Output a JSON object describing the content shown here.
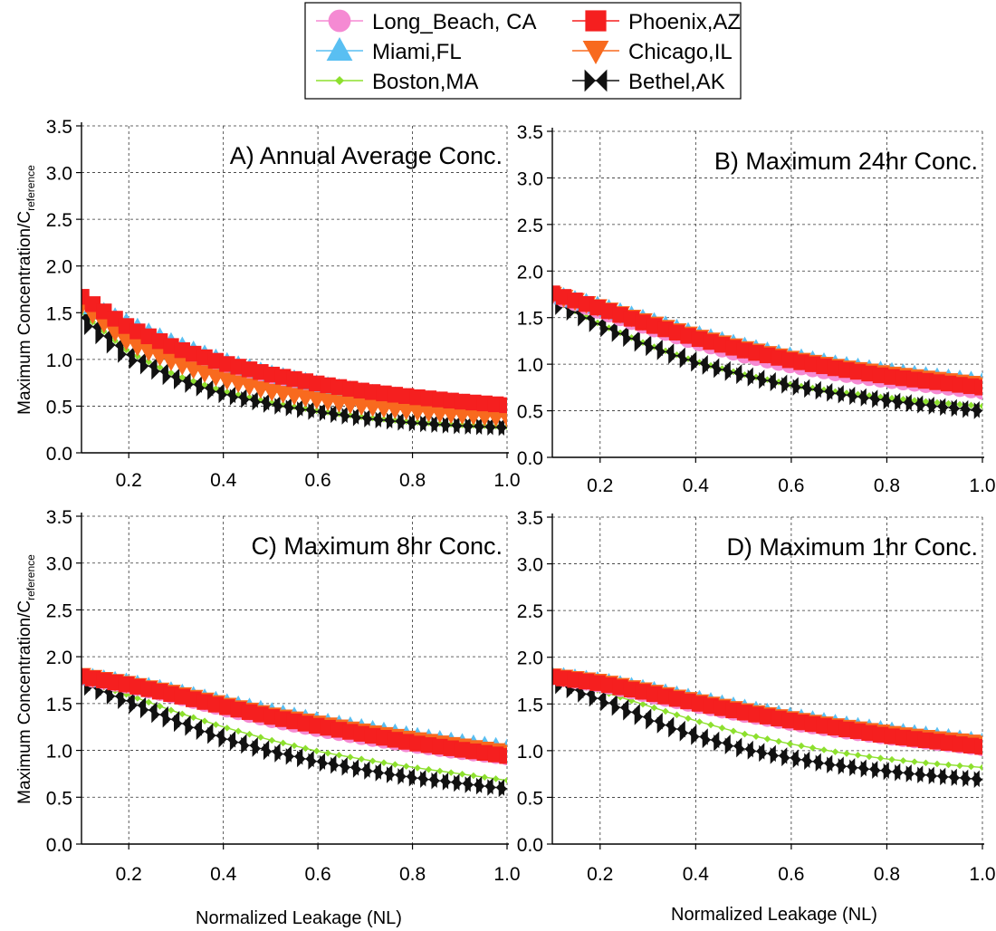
{
  "legend": {
    "placement": "top-center",
    "entries": [
      {
        "name": "Long_Beach, CA",
        "color": "#f58ad3",
        "marker": "circle"
      },
      {
        "name": "Miami,FL",
        "color": "#59bff2",
        "marker": "triangle-up"
      },
      {
        "name": "Boston,MA",
        "color": "#8de02e",
        "marker": "diamond-small"
      },
      {
        "name": "Phoenix,AZ",
        "color": "#f51f1f",
        "marker": "square"
      },
      {
        "name": "Chicago,IL",
        "color": "#f86a1e",
        "marker": "triangle-down"
      },
      {
        "name": "Bethel,AK",
        "color": "#111111",
        "marker": "bowtie"
      }
    ]
  },
  "axes": {
    "ylabel_main": "Maximum Concentration/C",
    "ylabel_sub": "reference",
    "xlabel": "Normalized Leakage (NL)",
    "xlim": [
      0.1,
      1.0
    ],
    "ylim": [
      0.0,
      3.5
    ],
    "xticks": [
      "0.2",
      "0.4",
      "0.6",
      "0.8",
      "1.0"
    ],
    "yticks": [
      "0.0",
      "0.5",
      "1.0",
      "1.5",
      "2.0",
      "2.5",
      "3.0",
      "3.5"
    ],
    "grid": "dashed"
  },
  "chart_data": [
    {
      "type": "line",
      "title": "A) Annual Average Conc.",
      "x_range": [
        0.1,
        1.0
      ],
      "points_per_series": 39,
      "series": [
        {
          "name": "Long_Beach, CA",
          "values_at": {
            "0.1": 1.65,
            "0.2": 1.32,
            "0.3": 1.09,
            "0.4": 0.92,
            "0.5": 0.79,
            "0.6": 0.69,
            "0.7": 0.61,
            "0.8": 0.56,
            "0.9": 0.52,
            "1.0": 0.49
          }
        },
        {
          "name": "Miami,FL",
          "values_at": {
            "0.1": 1.62,
            "0.2": 1.38,
            "0.3": 1.16,
            "0.4": 0.98,
            "0.5": 0.84,
            "0.6": 0.73,
            "0.7": 0.64,
            "0.8": 0.58,
            "0.9": 0.53,
            "1.0": 0.48
          }
        },
        {
          "name": "Boston,MA",
          "values_at": {
            "0.1": 1.5,
            "0.2": 1.08,
            "0.3": 0.83,
            "0.4": 0.66,
            "0.5": 0.54,
            "0.6": 0.45,
            "0.7": 0.38,
            "0.8": 0.33,
            "0.9": 0.3,
            "1.0": 0.28
          }
        },
        {
          "name": "Phoenix,AZ",
          "values_at": {
            "0.1": 1.67,
            "0.2": 1.34,
            "0.3": 1.12,
            "0.4": 0.96,
            "0.5": 0.84,
            "0.6": 0.74,
            "0.7": 0.66,
            "0.8": 0.6,
            "0.9": 0.55,
            "1.0": 0.51
          }
        },
        {
          "name": "Chicago,IL",
          "values_at": {
            "0.1": 1.58,
            "0.2": 1.18,
            "0.3": 0.96,
            "0.4": 0.79,
            "0.5": 0.66,
            "0.6": 0.57,
            "0.7": 0.5,
            "0.8": 0.45,
            "0.9": 0.41,
            "1.0": 0.38
          }
        },
        {
          "name": "Bethel,AK",
          "values_at": {
            "0.1": 1.45,
            "0.2": 1.03,
            "0.3": 0.79,
            "0.4": 0.63,
            "0.5": 0.52,
            "0.6": 0.44,
            "0.7": 0.37,
            "0.8": 0.32,
            "0.9": 0.29,
            "1.0": 0.27
          }
        }
      ]
    },
    {
      "type": "line",
      "title": "B) Maximum 24hr Conc.",
      "x_range": [
        0.1,
        1.0
      ],
      "points_per_series": 39,
      "series": [
        {
          "name": "Long_Beach, CA",
          "values_at": {
            "0.1": 1.74,
            "0.2": 1.57,
            "0.3": 1.4,
            "0.4": 1.24,
            "0.5": 1.1,
            "0.6": 0.99,
            "0.7": 0.9,
            "0.8": 0.83,
            "0.9": 0.77,
            "1.0": 0.71
          }
        },
        {
          "name": "Miami,FL",
          "values_at": {
            "0.1": 1.75,
            "0.2": 1.62,
            "0.3": 1.47,
            "0.4": 1.32,
            "0.5": 1.19,
            "0.6": 1.08,
            "0.7": 0.99,
            "0.8": 0.92,
            "0.9": 0.86,
            "1.0": 0.81
          }
        },
        {
          "name": "Boston,MA",
          "values_at": {
            "0.1": 1.7,
            "0.2": 1.43,
            "0.3": 1.21,
            "0.4": 1.03,
            "0.5": 0.89,
            "0.6": 0.78,
            "0.7": 0.7,
            "0.8": 0.64,
            "0.9": 0.59,
            "1.0": 0.55
          }
        },
        {
          "name": "Phoenix,AZ",
          "values_at": {
            "0.1": 1.76,
            "0.2": 1.6,
            "0.3": 1.43,
            "0.4": 1.28,
            "0.5": 1.15,
            "0.6": 1.04,
            "0.7": 0.95,
            "0.8": 0.87,
            "0.9": 0.81,
            "1.0": 0.75
          }
        },
        {
          "name": "Chicago,IL",
          "values_at": {
            "0.1": 1.75,
            "0.2": 1.61,
            "0.3": 1.45,
            "0.4": 1.3,
            "0.5": 1.17,
            "0.6": 1.06,
            "0.7": 0.97,
            "0.8": 0.9,
            "0.9": 0.84,
            "1.0": 0.78
          }
        },
        {
          "name": "Bethel,AK",
          "values_at": {
            "0.1": 1.68,
            "0.2": 1.42,
            "0.3": 1.2,
            "0.4": 1.02,
            "0.5": 0.88,
            "0.6": 0.77,
            "0.7": 0.68,
            "0.8": 0.61,
            "0.9": 0.55,
            "1.0": 0.5
          }
        }
      ]
    },
    {
      "type": "line",
      "title": "C) Maximum 8hr Conc.",
      "x_range": [
        0.1,
        1.0
      ],
      "points_per_series": 39,
      "series": [
        {
          "name": "Long_Beach, CA",
          "values_at": {
            "0.1": 1.78,
            "0.2": 1.69,
            "0.3": 1.58,
            "0.4": 1.45,
            "0.5": 1.33,
            "0.6": 1.23,
            "0.7": 1.14,
            "0.8": 1.06,
            "0.9": 0.99,
            "1.0": 0.93
          }
        },
        {
          "name": "Miami,FL",
          "values_at": {
            "0.1": 1.79,
            "0.2": 1.72,
            "0.3": 1.62,
            "0.4": 1.51,
            "0.5": 1.41,
            "0.6": 1.31,
            "0.7": 1.23,
            "0.8": 1.15,
            "0.9": 1.08,
            "1.0": 1.02
          }
        },
        {
          "name": "Boston,MA",
          "values_at": {
            "0.1": 1.75,
            "0.2": 1.59,
            "0.3": 1.41,
            "0.4": 1.25,
            "0.5": 1.11,
            "0.6": 0.99,
            "0.7": 0.9,
            "0.8": 0.82,
            "0.9": 0.75,
            "1.0": 0.68
          }
        },
        {
          "name": "Phoenix,AZ",
          "values_at": {
            "0.1": 1.79,
            "0.2": 1.7,
            "0.3": 1.59,
            "0.4": 1.47,
            "0.5": 1.36,
            "0.6": 1.26,
            "0.7": 1.17,
            "0.8": 1.08,
            "0.9": 1.01,
            "1.0": 0.94
          }
        },
        {
          "name": "Chicago,IL",
          "values_at": {
            "0.1": 1.8,
            "0.2": 1.71,
            "0.3": 1.61,
            "0.4": 1.49,
            "0.5": 1.38,
            "0.6": 1.29,
            "0.7": 1.2,
            "0.8": 1.12,
            "0.9": 1.05,
            "1.0": 0.98
          }
        },
        {
          "name": "Bethel,AK",
          "values_at": {
            "0.1": 1.72,
            "0.2": 1.52,
            "0.3": 1.31,
            "0.4": 1.13,
            "0.5": 0.99,
            "0.6": 0.88,
            "0.7": 0.79,
            "0.8": 0.71,
            "0.9": 0.65,
            "1.0": 0.59
          }
        }
      ]
    },
    {
      "type": "line",
      "title": "D) Maximum 1hr Conc.",
      "x_range": [
        0.1,
        1.0
      ],
      "points_per_series": 39,
      "series": [
        {
          "name": "Long_Beach, CA",
          "values_at": {
            "0.1": 1.79,
            "0.2": 1.71,
            "0.3": 1.6,
            "0.4": 1.49,
            "0.5": 1.39,
            "0.6": 1.3,
            "0.7": 1.22,
            "0.8": 1.15,
            "0.9": 1.09,
            "1.0": 1.03
          }
        },
        {
          "name": "Miami,FL",
          "values_at": {
            "0.1": 1.8,
            "0.2": 1.74,
            "0.3": 1.65,
            "0.4": 1.55,
            "0.5": 1.45,
            "0.6": 1.36,
            "0.7": 1.28,
            "0.8": 1.21,
            "0.9": 1.15,
            "1.0": 1.09
          }
        },
        {
          "name": "Boston,MA",
          "values_at": {
            "0.1": 1.77,
            "0.2": 1.64,
            "0.3": 1.48,
            "0.4": 1.32,
            "0.5": 1.18,
            "0.6": 1.07,
            "0.7": 0.98,
            "0.8": 0.91,
            "0.9": 0.86,
            "1.0": 0.82
          }
        },
        {
          "name": "Phoenix,AZ",
          "values_at": {
            "0.1": 1.79,
            "0.2": 1.72,
            "0.3": 1.62,
            "0.4": 1.51,
            "0.5": 1.41,
            "0.6": 1.32,
            "0.7": 1.24,
            "0.8": 1.16,
            "0.9": 1.1,
            "1.0": 1.04
          }
        },
        {
          "name": "Chicago,IL",
          "values_at": {
            "0.1": 1.8,
            "0.2": 1.74,
            "0.3": 1.64,
            "0.4": 1.53,
            "0.5": 1.43,
            "0.6": 1.34,
            "0.7": 1.26,
            "0.8": 1.19,
            "0.9": 1.13,
            "1.0": 1.08
          }
        },
        {
          "name": "Bethel,AK",
          "values_at": {
            "0.1": 1.74,
            "0.2": 1.55,
            "0.3": 1.34,
            "0.4": 1.16,
            "0.5": 1.02,
            "0.6": 0.92,
            "0.7": 0.84,
            "0.8": 0.78,
            "0.9": 0.73,
            "1.0": 0.69
          }
        }
      ]
    }
  ]
}
